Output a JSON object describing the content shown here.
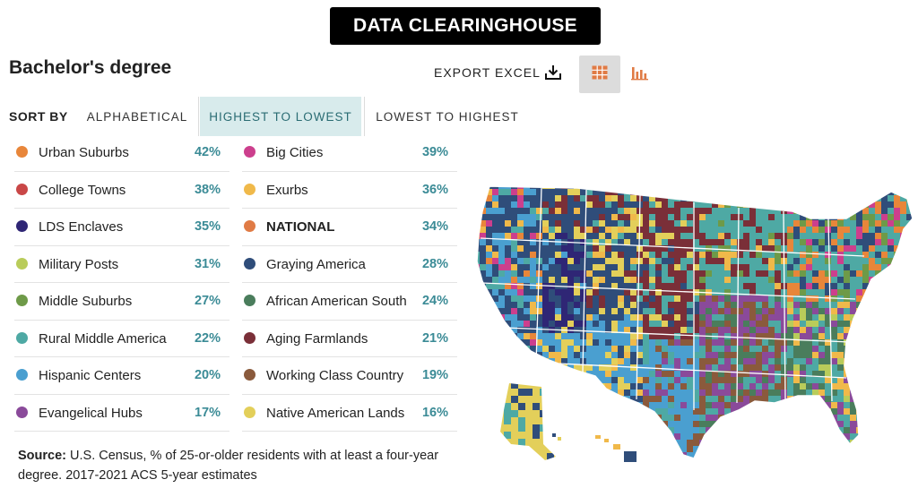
{
  "header": {
    "banner": "DATA CLEARINGHOUSE",
    "title": "Bachelor's degree"
  },
  "toolbar": {
    "export_label": "EXPORT EXCEL"
  },
  "sort": {
    "label": "SORT BY",
    "options": [
      "ALPHABETICAL",
      "HIGHEST TO LOWEST",
      "LOWEST TO HIGHEST"
    ],
    "selected": "HIGHEST TO LOWEST"
  },
  "legend": {
    "left": [
      {
        "label": "Urban Suburbs",
        "value": "42%",
        "color": "#e8863a"
      },
      {
        "label": "College Towns",
        "value": "38%",
        "color": "#c94747"
      },
      {
        "label": "LDS Enclaves",
        "value": "35%",
        "color": "#2f2675"
      },
      {
        "label": "Military Posts",
        "value": "31%",
        "color": "#b9cc5a"
      },
      {
        "label": "Middle Suburbs",
        "value": "27%",
        "color": "#6e9a48"
      },
      {
        "label": "Rural Middle America",
        "value": "22%",
        "color": "#4ea9a4"
      },
      {
        "label": "Hispanic Centers",
        "value": "20%",
        "color": "#4a9fd0"
      },
      {
        "label": "Evangelical Hubs",
        "value": "17%",
        "color": "#8a4a9a"
      }
    ],
    "right": [
      {
        "label": "Big Cities",
        "value": "39%",
        "color": "#cc3f8d"
      },
      {
        "label": "Exurbs",
        "value": "36%",
        "color": "#f0b94a"
      },
      {
        "label": "NATIONAL",
        "value": "34%",
        "color": "#e07b45"
      },
      {
        "label": "Graying America",
        "value": "28%",
        "color": "#2f4d7a"
      },
      {
        "label": "African American South",
        "value": "24%",
        "color": "#4a7d5c"
      },
      {
        "label": "Aging Farmlands",
        "value": "21%",
        "color": "#7a2f38"
      },
      {
        "label": "Working Class Country",
        "value": "19%",
        "color": "#8a5a3c"
      },
      {
        "label": "Native American Lands",
        "value": "16%",
        "color": "#e3cf5a"
      }
    ]
  },
  "source": {
    "label": "Source:",
    "text": "U.S. Census, % of 25-or-older residents with at least a four-year degree. 2017-2021 ACS 5-year estimates"
  },
  "icons": {
    "export": "download-icon",
    "table_view": "table-grid-icon",
    "chart_view": "bar-chart-icon"
  },
  "colors": {
    "accent": "#3b8b96",
    "selected_bg": "#d8ebec",
    "icon_orange": "#e07b45"
  }
}
